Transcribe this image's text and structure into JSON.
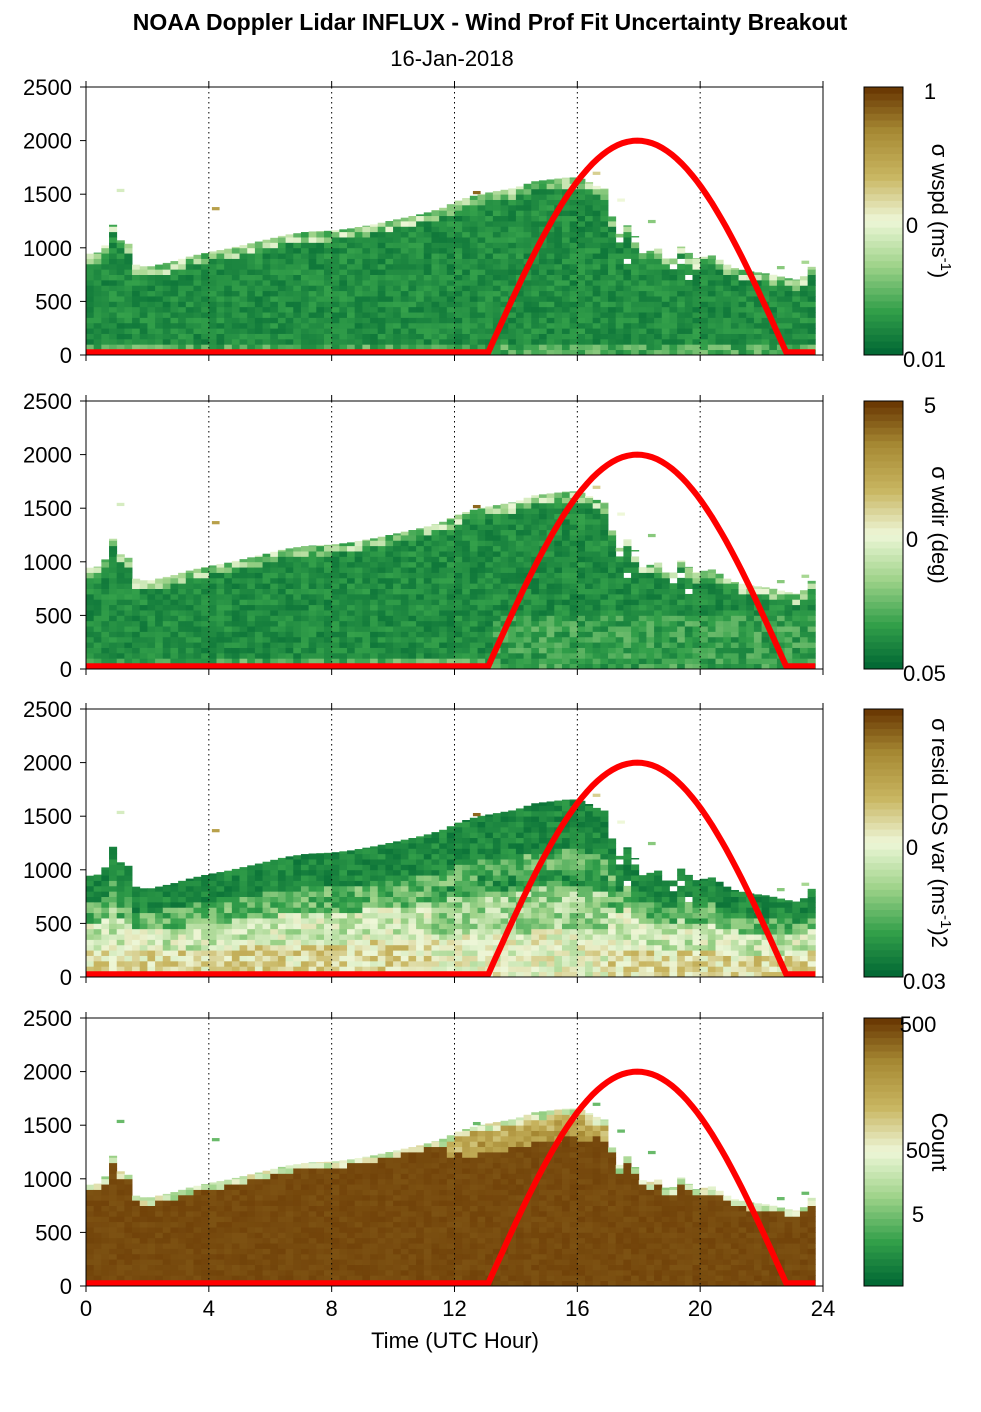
{
  "header": {
    "title": "NOAA Doppler Lidar INFLUX - Wind Prof Fit Uncertainty Breakout",
    "date": "16-Jan-2018"
  },
  "colors": {
    "dark_green": "#006633",
    "mid_green": "#33a04a",
    "light_green": "#9fd38a",
    "pale": "#eef7d8",
    "khaki": "#c8b560",
    "gold_brown": "#a78a34",
    "dark_brown": "#663300",
    "curve": "#ff0000"
  },
  "chart_data": [
    {
      "type": "heatmap",
      "name": "sigma_wspd",
      "xlabel": "",
      "ylabel": "",
      "xlim": [
        0,
        24
      ],
      "ylim": [
        0,
        2500
      ],
      "x_ticks": [
        0,
        4,
        8,
        12,
        16,
        20,
        24
      ],
      "y_ticks": [
        "0",
        "500",
        "1000",
        "1500",
        "2000",
        "2500"
      ],
      "colorbar": {
        "label": "σ wspd (ms-1)",
        "label_text": "σ wspd (ms",
        "label_sup": "-1",
        "label_tail": ")",
        "scale": "log",
        "range": [
          0.01,
          1
        ],
        "tick_labels": [
          "1",
          "0",
          "0.01"
        ]
      },
      "style": "low_green"
    },
    {
      "type": "heatmap",
      "name": "sigma_wdir",
      "xlabel": "",
      "ylabel": "",
      "xlim": [
        0,
        24
      ],
      "ylim": [
        0,
        2500
      ],
      "x_ticks": [
        0,
        4,
        8,
        12,
        16,
        20,
        24
      ],
      "y_ticks": [
        "0",
        "500",
        "1000",
        "1500",
        "2000",
        "2500"
      ],
      "colorbar": {
        "label": "σ wdir (deg)",
        "label_text": "σ wdir (deg)",
        "label_sup": "",
        "label_tail": "",
        "scale": "log",
        "range": [
          0.05,
          5
        ],
        "tick_labels": [
          "5",
          "0",
          "0.05"
        ]
      },
      "style": "low_green"
    },
    {
      "type": "heatmap",
      "name": "sigma_resid_los_var",
      "xlabel": "",
      "ylabel": "",
      "xlim": [
        0,
        24
      ],
      "ylim": [
        0,
        2500
      ],
      "x_ticks": [
        0,
        4,
        8,
        12,
        16,
        20,
        24
      ],
      "y_ticks": [
        "0",
        "500",
        "1000",
        "1500",
        "2000",
        "2500"
      ],
      "colorbar": {
        "label": "σ resid LOS var (ms-1)2",
        "label_text": "σ resid LOS var (ms",
        "label_sup": "-1",
        "label_tail": ")2",
        "scale": "log",
        "range": [
          0.03,
          3
        ],
        "tick_labels": [
          "",
          "0",
          "0.03"
        ]
      },
      "style": "resid"
    },
    {
      "type": "heatmap",
      "name": "count",
      "xlabel": "Time (UTC Hour)",
      "ylabel": "",
      "xlim": [
        0,
        24
      ],
      "ylim": [
        0,
        2500
      ],
      "x_ticks": [
        0,
        4,
        8,
        12,
        16,
        20,
        24
      ],
      "y_ticks": [
        "0",
        "500",
        "1000",
        "1500",
        "2000",
        "2500"
      ],
      "colorbar": {
        "label": "Count",
        "label_text": "Count",
        "label_sup": "",
        "label_tail": "",
        "scale": "log",
        "range": [
          1,
          500
        ],
        "tick_labels": [
          "500",
          "50",
          "5"
        ]
      },
      "style": "count"
    }
  ],
  "shared": {
    "cloud_top_m": [
      [
        0.0,
        940
      ],
      [
        0.5,
        960
      ],
      [
        0.8,
        1110
      ],
      [
        0.9,
        1250
      ],
      [
        1.15,
        1050
      ],
      [
        1.3,
        1150
      ],
      [
        1.5,
        850
      ],
      [
        2.0,
        820
      ],
      [
        2.8,
        870
      ],
      [
        3.4,
        920
      ],
      [
        4.0,
        960
      ],
      [
        4.6,
        990
      ],
      [
        5.2,
        1030
      ],
      [
        5.8,
        1070
      ],
      [
        6.5,
        1120
      ],
      [
        7.2,
        1150
      ],
      [
        8.0,
        1160
      ],
      [
        8.6,
        1180
      ],
      [
        9.4,
        1220
      ],
      [
        10.2,
        1270
      ],
      [
        11.0,
        1320
      ],
      [
        11.6,
        1370
      ],
      [
        12.2,
        1450
      ],
      [
        12.8,
        1500
      ],
      [
        13.4,
        1530
      ],
      [
        14.0,
        1560
      ],
      [
        14.6,
        1620
      ],
      [
        15.2,
        1640
      ],
      [
        15.8,
        1660
      ],
      [
        16.2,
        1640
      ],
      [
        16.6,
        1580
      ],
      [
        16.9,
        1550
      ],
      [
        17.1,
        1320
      ],
      [
        17.3,
        1100
      ],
      [
        17.6,
        1220
      ],
      [
        17.9,
        1100
      ],
      [
        18.2,
        950
      ],
      [
        18.6,
        1000
      ],
      [
        19.0,
        880
      ],
      [
        19.4,
        1020
      ],
      [
        19.8,
        900
      ],
      [
        20.4,
        930
      ],
      [
        21.0,
        820
      ],
      [
        21.6,
        780
      ],
      [
        22.2,
        760
      ],
      [
        22.8,
        720
      ],
      [
        23.2,
        700
      ],
      [
        23.5,
        760
      ],
      [
        23.7,
        860
      ],
      [
        23.75,
        860
      ]
    ],
    "data_x_end": 23.75,
    "solar_curve": {
      "rise_hour": 13.1,
      "set_hour": 22.8,
      "peak_hour": 17.95,
      "peak_m": 2000,
      "base_m": 25
    }
  }
}
